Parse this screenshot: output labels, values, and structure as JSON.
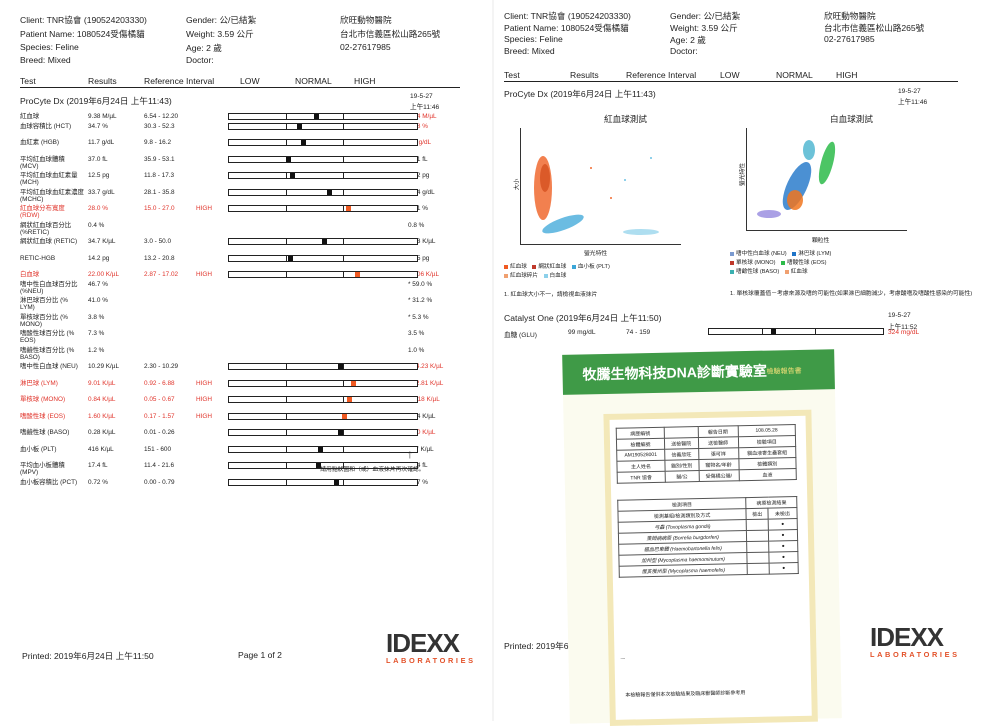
{
  "header": {
    "client": "Client: TNR協會 (190524203330)",
    "patient": "Patient Name: 1080524受傷橘貓",
    "species": "Species: Feline",
    "breed": "Breed: Mixed",
    "gender": "Gender: 公/已結紮",
    "weight": "Weight: 3.59 公斤",
    "age": "Age: 2 歲",
    "doctor": "Doctor:",
    "clinic": "欣旺動物醫院",
    "address": "台北市信義區松山路265號",
    "phone": "02-27617985"
  },
  "columns": {
    "test": "Test",
    "results": "Results",
    "ref": "Reference Interval",
    "low": "LOW",
    "normal": "NORMAL",
    "high": "HIGH"
  },
  "page1": {
    "section": "ProCyte Dx (2019年6月24日 上午11:43)",
    "stamp_date": "19-5-27",
    "stamp_time": "上午11:46",
    "rows": [
      {
        "test": "紅血球",
        "result": "9.38 M/µL",
        "ref": "6.54 - 12.20",
        "flag": "",
        "prev": "4.44 M/µL",
        "prev_red": true,
        "bar": true,
        "marker": 0.46,
        "hi": false
      },
      {
        "test": "血球容積比 (HCT)",
        "result": "34.7 %",
        "ref": "30.3 - 52.3",
        "flag": "",
        "prev": "17.8 %",
        "prev_red": true,
        "bar": true,
        "marker": 0.37,
        "hi": false
      },
      {
        "test": "血紅素 (HGB)",
        "result": "11.7 g/dL",
        "ref": "9.8 - 16.2",
        "flag": "",
        "prev": "6.3 g/dL",
        "prev_red": true,
        "bar": true,
        "marker": 0.39,
        "hi": false
      },
      {
        "test": "平均紅血球體積 (MCV)",
        "result": "37.0 fL",
        "ref": "35.9 - 53.1",
        "flag": "",
        "prev": "40.1 fL",
        "prev_red": false,
        "bar": true,
        "marker": 0.31,
        "hi": false
      },
      {
        "test": "平均紅血球血紅素量 (MCH)",
        "result": "12.5 pg",
        "ref": "11.8 - 17.3",
        "flag": "",
        "prev": "14.2 pg",
        "prev_red": false,
        "bar": true,
        "marker": 0.33,
        "hi": false
      },
      {
        "test": "平均紅血球血紅素濃度 (MCHC)",
        "result": "33.7 g/dL",
        "ref": "28.1 - 35.8",
        "flag": "",
        "prev": "35.4 g/dL",
        "prev_red": false,
        "bar": true,
        "marker": 0.53,
        "hi": false
      },
      {
        "test": "紅血球分布寬度 (RDW)",
        "result": "28.0 %",
        "ref": "15.0 - 27.0",
        "flag": "HIGH",
        "prev": "27.1 %",
        "prev_red": false,
        "bar": true,
        "marker": 0.63,
        "hi": true,
        "red": true
      },
      {
        "test": "網狀紅血球百分比 (%RETIC)",
        "result": "0.4 %",
        "ref": "",
        "flag": "",
        "prev": "0.8 %",
        "prev_red": false,
        "bar": false
      },
      {
        "test": "網狀紅血球 (RETIC)",
        "result": "34.7 K/µL",
        "ref": "3.0 - 50.0",
        "flag": "",
        "prev": "37.3 K/µL",
        "prev_red": false,
        "bar": true,
        "marker": 0.5,
        "hi": false
      },
      {
        "test": "RETIC-HGB",
        "result": "14.2 pg",
        "ref": "13.2 - 20.8",
        "flag": "",
        "prev": "15.5 pg",
        "prev_red": false,
        "bar": true,
        "marker": 0.32,
        "hi": false
      },
      {
        "test": "白血球",
        "result": "22.00 K/µL",
        "ref": "2.87 - 17.02",
        "flag": "HIGH",
        "prev": "41.06 K/µL",
        "prev_red": true,
        "bar": true,
        "marker": 0.68,
        "hi": true,
        "red": true
      },
      {
        "test": "嗜中性白血球百分比 (%NEU)",
        "result": "46.7 %",
        "ref": "",
        "flag": "",
        "prev": "* 59.0 %",
        "prev_red": false,
        "bar": false
      },
      {
        "test": "淋巴球百分比 (% LYM)",
        "result": "41.0 %",
        "ref": "",
        "flag": "",
        "prev": "* 31.2 %",
        "prev_red": false,
        "bar": false
      },
      {
        "test": "單核球百分比 (% MONO)",
        "result": "3.8 %",
        "ref": "",
        "flag": "",
        "prev": "* 5.3 %",
        "prev_red": false,
        "bar": false
      },
      {
        "test": "嗜酸性球百分比 (% EOS)",
        "result": "7.3 %",
        "ref": "",
        "flag": "",
        "prev": "3.5 %",
        "prev_red": false,
        "bar": false
      },
      {
        "test": "嗜鹼性球百分比 (% BASO)",
        "result": "1.2 %",
        "ref": "",
        "flag": "",
        "prev": "1.0 %",
        "prev_red": false,
        "bar": false
      },
      {
        "test": "嗜中性白血球 (NEU)",
        "result": "10.29 K/µL",
        "ref": "2.30 - 10.29",
        "flag": "",
        "prev": "* 24.23 K/µL",
        "prev_red": true,
        "bar": true,
        "marker": 0.59,
        "hi": false
      },
      {
        "test": "淋巴球 (LYM)",
        "result": "9.01 K/µL",
        "ref": "0.92 - 6.88",
        "flag": "HIGH",
        "prev": "* 12.81 K/µL",
        "prev_red": true,
        "bar": true,
        "marker": 0.66,
        "hi": true,
        "red": true
      },
      {
        "test": "單核球 (MONO)",
        "result": "0.84 K/µL",
        "ref": "0.05 - 0.67",
        "flag": "HIGH",
        "prev": "* 2.18 K/µL",
        "prev_red": true,
        "bar": true,
        "marker": 0.64,
        "hi": true,
        "red": true
      },
      {
        "test": "嗜酸性球 (EOS)",
        "result": "1.60 K/µL",
        "ref": "0.17 - 1.57",
        "flag": "HIGH",
        "prev": "1.44 K/µL",
        "prev_red": false,
        "bar": true,
        "marker": 0.61,
        "hi": true,
        "red": true
      },
      {
        "test": "嗜鹼性球 (BASO)",
        "result": "0.28 K/µL",
        "ref": "0.01 - 0.26",
        "flag": "",
        "prev": "0.40 K/µL",
        "prev_red": true,
        "bar": true,
        "marker": 0.59,
        "hi": false
      },
      {
        "test": "血小板 (PLT)",
        "result": "416 K/µL",
        "ref": "151 - 600",
        "flag": "",
        "prev": "287 K/µL",
        "prev_red": false,
        "bar": true,
        "marker": 0.48,
        "hi": false
      },
      {
        "test": "平均血小板體積 (MPV)",
        "result": "17.4 fL",
        "ref": "11.4 - 21.6",
        "flag": "",
        "prev": "16.4 fL",
        "prev_red": false,
        "bar": true,
        "marker": 0.47,
        "hi": false
      },
      {
        "test": "血小板容積比 (PCT)",
        "result": "0.72 %",
        "ref": "0.00 - 0.79",
        "flag": "",
        "prev": "0.47 %",
        "prev_red": false,
        "bar": true,
        "marker": 0.57,
        "hi": false
      }
    ],
    "footnote": "*請用點狀圖和（或）血液抹片再次確認。",
    "printed": "Printed: 2019年6月24日 上午11:50",
    "page": "Page 1 of 2"
  },
  "page2": {
    "section": "ProCyte Dx (2019年6月24日 上午11:43)",
    "stamp_date": "19-5-27",
    "stamp_time": "上午11:46",
    "plot1_title": "紅血球測試",
    "plot1_y": "大小",
    "plot1_x": "螢光特性",
    "plot2_title": "白血球測試",
    "plot2_y": "螢光特性",
    "plot2_x": "顆粒性",
    "legend1": [
      "紅血球",
      "網狀紅血球",
      "血小板 (PLT)",
      "紅血球碎片",
      "白血球"
    ],
    "legend1_note": "1. 紅血球大小不一，請檢視血液抹片",
    "legend2": [
      "嗜中性白血球 (NEU)",
      "淋巴球 (LYM)",
      "單核球 (MONO)",
      "嗜酸性球 (EOS)",
      "嗜鹼性球 (BASO)",
      "紅血球"
    ],
    "legend2_note": "1. 單核球覆蓋值－考慮來源及嗜的可能性(如果淋巴細胞減少，考慮酸嗜及嗜酸性感染的可能性)",
    "catalyst_section": "Catalyst One (2019年6月24日 上午11:50)",
    "catalyst_date": "19-5-27",
    "catalyst_time": "上午11:52",
    "glu_test": "血糖 (GLU)",
    "glu_result": "99 mg/dL",
    "glu_ref": "74 - 159",
    "glu_prev": "324 mg/dL",
    "printed": "Printed: 2019年6"
  },
  "dna": {
    "title": "牧騰生物科技DNA診斷實驗室",
    "subtitle": "檢驗報告書",
    "report_date_label": "報告日期",
    "report_date": "108.05.28",
    "rows": [
      [
        "病歷編號",
        "",
        "報告日期",
        "108.05.28"
      ],
      [
        "檢體編號",
        "送檢醫院",
        "送檢醫師",
        "檢驗項目"
      ],
      [
        "AM190528001",
        "信義欣旺",
        "張可祥",
        "貓血液寄生蟲套組"
      ],
      [
        "主人姓名",
        "貓別/性別",
        "寵物名/年齡",
        "檢體類別"
      ],
      [
        "TNR 協會",
        "貓/公",
        "受傷橘公貓/",
        "血液"
      ]
    ],
    "result_header": "檢測項目",
    "result_header2": "病原檢測結果",
    "method": "檢測基組/檢測類別及方式",
    "col_pos": "檢出",
    "col_neg": "未檢出",
    "items": [
      {
        "name": "弓蟲 (Toxoplasma gondii)"
      },
      {
        "name": "萊姆病病原 (Borrelia burgdorferi)"
      },
      {
        "name": "貓血巴東體 (Haemobartonella felis)"
      },
      {
        "name": "加州型 (Mycoplasma haemominutum)"
      },
      {
        "name": "俄亥俄州型 (Mycoplasma haemofelis)"
      }
    ],
    "footer": "本檢驗報告僅供本次檢驗結果及臨床獸醫師診斷參考用"
  },
  "brand": {
    "logo": "IDEXX",
    "sub": "LABORATORIES",
    "logo_color": "#333333",
    "sub_color": "#e3522a"
  }
}
